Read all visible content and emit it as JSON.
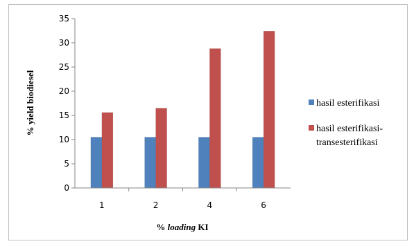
{
  "chart_data": {
    "type": "bar",
    "categories": [
      "1",
      "2",
      "4",
      "6"
    ],
    "series": [
      {
        "name": "hasil esterifikasi",
        "values": [
          10.5,
          10.5,
          10.5,
          10.5
        ],
        "color": "#4f81bd"
      },
      {
        "name": "hasil esterifikasi-transesterifikasi",
        "values": [
          15.6,
          16.5,
          28.8,
          32.4
        ],
        "color": "#c0504d"
      }
    ],
    "xlabel_prefix": "% ",
    "xlabel_italic": "loading",
    "xlabel_suffix": " KI",
    "ylabel": "% yield biodiesel",
    "ylim": [
      0,
      35
    ],
    "yticks": [
      "0",
      "5",
      "10",
      "15",
      "20",
      "25",
      "30",
      "35"
    ],
    "legend_position": "right",
    "legend_lines": [
      [
        "hasil esterifikasi"
      ],
      [
        "hasil esterifikasi-",
        "transesterifikasi"
      ]
    ]
  }
}
